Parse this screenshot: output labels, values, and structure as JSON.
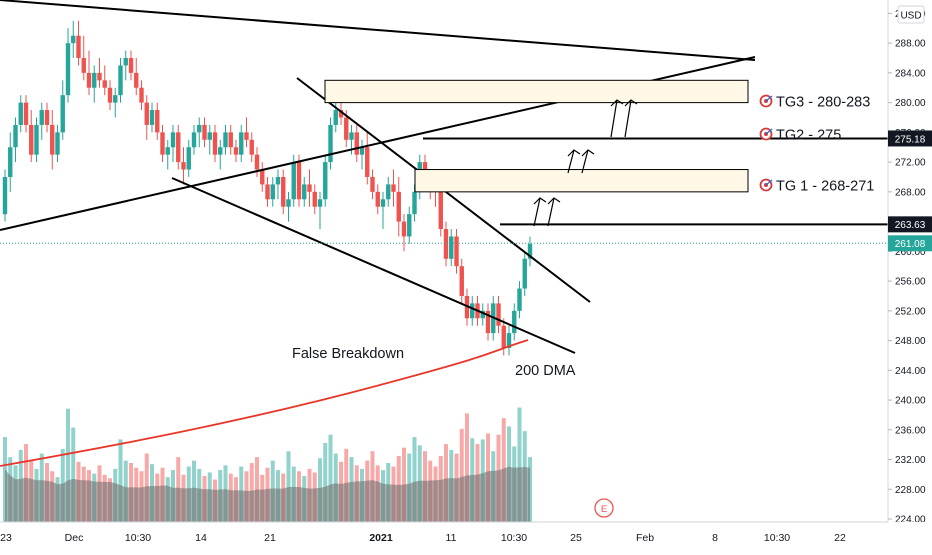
{
  "currency": "USD",
  "chart_data": {
    "type": "candlestick",
    "y_axis": {
      "ticks": [
        292,
        288,
        284,
        280,
        276,
        272,
        268,
        264,
        260,
        256,
        252,
        248,
        244,
        240,
        236,
        232,
        228,
        224
      ],
      "range": [
        223.6,
        293.8
      ],
      "unit": "USD"
    },
    "x_axis": {
      "ticks": [
        {
          "label": "23",
          "bold": false
        },
        {
          "label": "Dec",
          "bold": false
        },
        {
          "label": "10:30",
          "bold": false
        },
        {
          "label": "14",
          "bold": false
        },
        {
          "label": "21",
          "bold": false
        },
        {
          "label": "2021",
          "bold": true
        },
        {
          "label": "11",
          "bold": false
        },
        {
          "label": "10:30",
          "bold": false
        },
        {
          "label": "25",
          "bold": false
        },
        {
          "label": "Feb",
          "bold": false
        },
        {
          "label": "8",
          "bold": false
        },
        {
          "label": "10:30",
          "bold": false
        },
        {
          "label": "22",
          "bold": false
        }
      ]
    },
    "candles": [
      [
        265,
        271,
        264,
        270
      ],
      [
        270,
        276,
        268,
        274
      ],
      [
        274,
        278,
        272,
        277
      ],
      [
        277,
        281,
        276,
        280
      ],
      [
        280,
        281,
        276,
        277
      ],
      [
        277,
        279,
        272,
        273
      ],
      [
        273,
        278,
        272,
        277
      ],
      [
        277,
        280,
        275,
        279
      ],
      [
        279,
        280,
        276,
        277
      ],
      [
        277,
        279,
        271,
        273
      ],
      [
        273,
        277,
        272,
        276
      ],
      [
        276,
        283,
        275,
        281
      ],
      [
        281,
        290,
        280,
        288
      ],
      [
        288,
        291,
        286,
        289
      ],
      [
        289,
        291,
        285,
        286
      ],
      [
        286,
        289,
        283,
        284
      ],
      [
        284,
        287,
        281,
        282
      ],
      [
        282,
        285,
        280,
        284
      ],
      [
        284,
        286,
        282,
        283
      ],
      [
        283,
        285,
        281,
        282
      ],
      [
        282,
        283,
        279,
        280
      ],
      [
        280,
        282,
        278,
        281
      ],
      [
        281,
        286,
        280,
        285
      ],
      [
        285,
        287,
        283,
        286
      ],
      [
        286,
        287,
        283,
        284
      ],
      [
        284,
        286,
        281,
        282
      ],
      [
        282,
        283,
        279,
        280
      ],
      [
        280,
        281,
        275,
        277
      ],
      [
        277,
        280,
        276,
        279
      ],
      [
        279,
        280,
        275,
        276
      ],
      [
        276,
        277,
        272,
        273
      ],
      [
        273,
        275,
        271,
        274
      ],
      [
        274,
        277,
        272,
        276
      ],
      [
        276,
        277,
        271,
        272
      ],
      [
        272,
        274,
        269,
        271
      ],
      [
        271,
        275,
        270,
        274
      ],
      [
        274,
        277,
        273,
        276
      ],
      [
        276,
        278,
        274,
        277
      ],
      [
        277,
        278,
        274,
        275
      ],
      [
        275,
        277,
        273,
        276
      ],
      [
        276,
        277,
        272,
        273
      ],
      [
        273,
        275,
        271,
        274
      ],
      [
        274,
        277,
        273,
        276
      ],
      [
        276,
        277,
        273,
        274
      ],
      [
        274,
        275,
        272,
        273
      ],
      [
        273,
        277,
        272,
        276
      ],
      [
        276,
        278,
        274,
        275
      ],
      [
        275,
        276,
        272,
        273
      ],
      [
        273,
        274,
        270,
        271
      ],
      [
        271,
        272,
        268,
        269
      ],
      [
        269,
        270,
        266,
        267
      ],
      [
        267,
        270,
        266,
        269
      ],
      [
        269,
        271,
        267,
        270
      ],
      [
        270,
        271,
        265,
        266
      ],
      [
        266,
        268,
        264,
        267
      ],
      [
        267,
        273,
        266,
        272
      ],
      [
        272,
        273,
        266,
        267
      ],
      [
        267,
        270,
        266,
        269
      ],
      [
        269,
        271,
        266,
        268
      ],
      [
        268,
        269,
        265,
        266
      ],
      [
        266,
        268,
        263,
        267
      ],
      [
        267,
        273,
        266,
        272
      ],
      [
        272,
        278,
        271,
        277
      ],
      [
        277,
        281,
        276,
        279
      ],
      [
        279,
        281,
        277,
        278
      ],
      [
        278,
        279,
        274,
        275
      ],
      [
        275,
        277,
        273,
        276
      ],
      [
        276,
        277,
        272,
        273
      ],
      [
        273,
        275,
        271,
        274
      ],
      [
        274,
        276,
        269,
        270
      ],
      [
        270,
        271,
        267,
        268
      ],
      [
        268,
        269,
        265,
        266
      ],
      [
        266,
        268,
        263,
        267
      ],
      [
        267,
        270,
        266,
        269
      ],
      [
        269,
        271,
        266,
        268
      ],
      [
        268,
        270,
        262,
        264
      ],
      [
        264,
        265,
        260,
        262
      ],
      [
        262,
        266,
        261,
        265
      ],
      [
        265,
        269,
        264,
        268
      ],
      [
        268,
        273,
        267,
        272
      ],
      [
        272,
        273,
        269,
        270
      ],
      [
        270,
        271,
        267,
        269
      ],
      [
        269,
        270,
        266,
        268
      ],
      [
        268,
        269,
        262,
        263
      ],
      [
        263,
        264,
        258,
        259
      ],
      [
        259,
        263,
        258,
        262
      ],
      [
        262,
        263,
        257,
        258
      ],
      [
        258,
        259,
        253,
        254
      ],
      [
        254,
        255,
        250,
        251
      ],
      [
        251,
        254,
        250,
        253
      ],
      [
        253,
        254,
        250,
        251
      ],
      [
        251,
        253,
        250,
        252
      ],
      [
        252,
        253,
        248,
        249
      ],
      [
        249,
        254,
        248,
        253
      ],
      [
        253,
        254,
        249,
        250
      ],
      [
        250,
        251,
        246,
        247
      ],
      [
        247,
        250,
        246,
        249
      ],
      [
        249,
        253,
        248,
        252
      ],
      [
        252,
        256,
        251,
        255
      ],
      [
        255,
        260,
        254,
        259
      ],
      [
        259,
        262,
        258,
        261
      ]
    ],
    "volume": [
      0.72,
      0.55,
      0.48,
      0.61,
      0.66,
      0.52,
      0.45,
      0.58,
      0.5,
      0.43,
      0.38,
      0.62,
      0.96,
      0.8,
      0.51,
      0.47,
      0.44,
      0.41,
      0.48,
      0.4,
      0.37,
      0.45,
      0.7,
      0.52,
      0.5,
      0.46,
      0.43,
      0.58,
      0.49,
      0.41,
      0.46,
      0.38,
      0.44,
      0.55,
      0.4,
      0.47,
      0.52,
      0.45,
      0.39,
      0.42,
      0.36,
      0.44,
      0.48,
      0.41,
      0.38,
      0.47,
      0.43,
      0.5,
      0.55,
      0.4,
      0.46,
      0.52,
      0.44,
      0.41,
      0.6,
      0.47,
      0.43,
      0.39,
      0.45,
      0.42,
      0.54,
      0.67,
      0.74,
      0.58,
      0.51,
      0.62,
      0.55,
      0.48,
      0.45,
      0.52,
      0.6,
      0.48,
      0.44,
      0.5,
      0.47,
      0.56,
      0.63,
      0.58,
      0.72,
      0.65,
      0.6,
      0.52,
      0.47,
      0.56,
      0.66,
      0.61,
      0.58,
      0.79,
      0.92,
      0.71,
      0.66,
      0.7,
      0.75,
      0.6,
      0.74,
      0.88,
      0.81,
      0.64,
      0.97,
      0.77,
      0.55
    ],
    "price_labels": [
      {
        "value": 275.18,
        "text": "275.18",
        "color": "#131722"
      },
      {
        "value": 263.63,
        "text": "263.63",
        "color": "#131722"
      },
      {
        "value": 261.08,
        "text": "261.08",
        "color": "#26a69a"
      }
    ],
    "annotations": {
      "false_breakdown": "False Breakdown",
      "dma_200": "200 DMA",
      "earnings_marker": "E",
      "targets": [
        {
          "label": "TG3 - 280-283",
          "low": 280,
          "high": 283
        },
        {
          "label": "TG2 - 275",
          "level": 275
        },
        {
          "label": "TG 1 - 268-271",
          "low": 268,
          "high": 271
        }
      ]
    },
    "colors": {
      "up": "#26a69a",
      "down": "#ef5350",
      "zone_fill": "#fff8e6",
      "dma_line": "#e8372a",
      "last_price": "#26a69a",
      "volume_ma": "#6b6b6b"
    }
  }
}
